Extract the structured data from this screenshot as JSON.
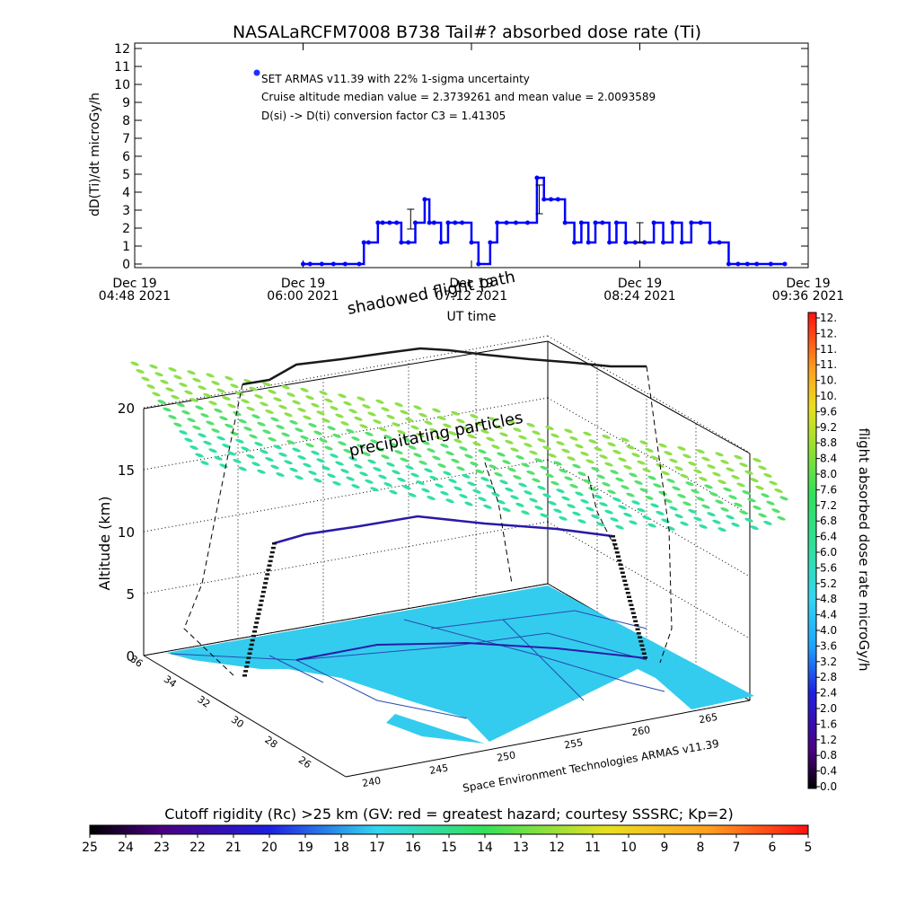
{
  "chart_data": [
    {
      "type": "line",
      "title": "NASALaRCFM7008  B738 Tail#? absorbed dose rate (Ti)",
      "xlabel": "UT time",
      "ylabel": "dD(Ti)/dt microGy/h",
      "ylim": [
        0,
        12
      ],
      "yticks": [
        "0",
        "1",
        "2",
        "3",
        "4",
        "5",
        "6",
        "7",
        "8",
        "9",
        "10",
        "11",
        "12"
      ],
      "xticks": [
        {
          "date": "Dec 19",
          "time": "04:48 2021"
        },
        {
          "date": "Dec 19",
          "time": "06:00 2021"
        },
        {
          "date": "Dec 19",
          "time": "07:12 2021"
        },
        {
          "date": "Dec 19",
          "time": "08:24 2021"
        },
        {
          "date": "Dec 19",
          "time": "09:36 2021"
        }
      ],
      "xlim_minutes_from_0448": [
        0,
        288
      ],
      "legend": {
        "marker_label": "SET ARMAS v11.39 with 22% 1-sigma uncertainty",
        "line2": "Cruise altitude median value = 2.3739261 and mean value = 2.0093589",
        "line3": "D(si) -> D(ti) conversion factor C3 = 1.41305"
      },
      "series": [
        {
          "color": "#0000ff",
          "x": [
            72,
            75,
            80,
            85,
            90,
            96,
            98,
            100,
            104,
            106,
            109,
            112,
            114,
            117,
            120,
            124,
            126,
            128,
            131,
            134,
            137,
            140,
            144,
            147,
            152,
            155,
            159,
            163,
            168,
            172,
            175,
            178,
            181,
            184,
            188,
            191,
            194,
            197,
            200,
            203,
            206,
            210,
            214,
            218,
            222,
            226,
            230,
            234,
            238,
            242,
            246,
            250,
            254,
            258,
            262,
            266,
            272,
            278
          ],
          "y": [
            0,
            0,
            0,
            0,
            0,
            0,
            1.2,
            1.2,
            2.3,
            2.3,
            2.3,
            2.3,
            1.2,
            1.2,
            2.3,
            3.6,
            2.3,
            2.3,
            1.2,
            2.3,
            2.3,
            2.3,
            1.2,
            0,
            1.2,
            2.3,
            2.3,
            2.3,
            2.3,
            4.8,
            3.6,
            3.6,
            3.6,
            2.3,
            1.2,
            2.3,
            1.2,
            2.3,
            2.3,
            1.2,
            2.3,
            1.2,
            1.2,
            1.2,
            2.3,
            1.2,
            2.3,
            1.2,
            2.3,
            2.3,
            1.2,
            1.2,
            0,
            0,
            0,
            0,
            0,
            0
          ],
          "error_bars": [
            {
              "x": 118,
              "y": 2.5,
              "low": 1.95,
              "high": 3.05
            },
            {
              "x": 173,
              "y": 3.6,
              "low": 2.8,
              "high": 4.4
            },
            {
              "x": 216,
              "y": 1.5,
              "low": 1.2,
              "high": 2.3
            }
          ]
        }
      ]
    },
    {
      "type": "scatter",
      "zlabel": "Altitude (km)",
      "zticks": [
        "0",
        "5",
        "10",
        "15",
        "20"
      ],
      "lat_ticks": [
        "36",
        "34",
        "32",
        "30",
        "28",
        "26"
      ],
      "lon_ticks": [
        "240",
        "245",
        "250",
        "255",
        "260",
        "265"
      ],
      "flight_path": {
        "lon": [
          242.0,
          243.5,
          248.0,
          252.0,
          258.0,
          260.5,
          262.0
        ],
        "lat": [
          35.5,
          35.5,
          35.0,
          34.0,
          33.0,
          33.2,
          33.4
        ],
        "alt_km": [
          0,
          9.0,
          10.0,
          11.0,
          10.5,
          9.8,
          0
        ]
      },
      "annotations": [
        "shadowed flight path",
        "precipitating particles"
      ],
      "credit": "Space Environment Technologies ARMAS v11.39",
      "colorbar": {
        "label": "flight absorbed dose rate microGy/h",
        "ticks": [
          "0.0",
          "0.4",
          "0.8",
          "1.2",
          "1.6",
          "2.0",
          "2.4",
          "2.8",
          "3.2",
          "3.6",
          "4.0",
          "4.4",
          "4.8",
          "5.2",
          "5.6",
          "6.0",
          "6.4",
          "6.8",
          "7.2",
          "7.6",
          "8.0",
          "8.4",
          "8.8",
          "9.2",
          "9.6",
          "10.",
          "10.",
          "11.",
          "11.",
          "12.",
          "12."
        ],
        "range": [
          0,
          12
        ]
      },
      "rigidity_bar": {
        "title": "Cutoff rigidity (Rc) >25 km (GV: red = greatest hazard; courtesy SSSRC; Kp=2)",
        "ticks": [
          "25",
          "24",
          "23",
          "22",
          "21",
          "20",
          "19",
          "18",
          "17",
          "16",
          "15",
          "14",
          "13",
          "12",
          "11",
          "10",
          "9",
          "8",
          "7",
          "6",
          "5"
        ]
      },
      "colors": {
        "ground": "#33ccee",
        "flight_top": "#1a1a1a",
        "flight_cruise": "#2a1aa8",
        "particles": "#33ee88"
      }
    }
  ]
}
